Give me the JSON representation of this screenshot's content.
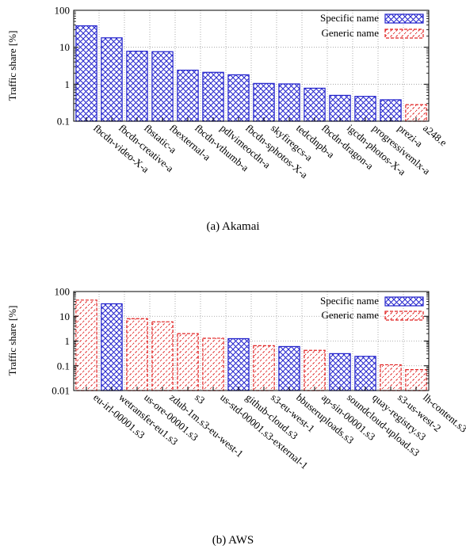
{
  "colors": {
    "specific": "#2222cc",
    "generic": "#e02020",
    "grid": "#999999",
    "axis": "#000000"
  },
  "chart_data": [
    {
      "type": "bar",
      "caption": "(a) Akamai",
      "ylabel": "Traffic share [%]",
      "yscale": "log",
      "ylim": [
        0.1,
        100
      ],
      "yticks": [
        "0.1",
        "1",
        "10",
        "100"
      ],
      "grid": true,
      "legend_position": "top-right",
      "legend": [
        {
          "label": "Specific name",
          "kind": "specific"
        },
        {
          "label": "Generic name",
          "kind": "generic"
        }
      ],
      "categories": [
        "fbcdn-video-X-a",
        "fbcdn-creative-a",
        "fbstatic-a",
        "fbexternal-a",
        "fbcdn-vthumb-a",
        "pdlvimeocdn-a",
        "fbcdn-sphotos-X-a",
        "skyfiregcs-a",
        "tedcdnpb-a",
        "fbcdn-dragon-a",
        "igcdn-photos-X-a",
        "progressivemlx-a",
        "prezi-a",
        "a248.e"
      ],
      "values": [
        38,
        18,
        7.8,
        7.6,
        2.4,
        2.1,
        1.8,
        1.05,
        1.02,
        0.78,
        0.5,
        0.47,
        0.38,
        0.28
      ],
      "kinds": [
        "specific",
        "specific",
        "specific",
        "specific",
        "specific",
        "specific",
        "specific",
        "specific",
        "specific",
        "specific",
        "specific",
        "specific",
        "specific",
        "generic"
      ]
    },
    {
      "type": "bar",
      "caption": "(b) AWS",
      "ylabel": "Traffic share [%]",
      "yscale": "log",
      "ylim": [
        0.01,
        100
      ],
      "yticks": [
        "0.01",
        "0.1",
        "1",
        "10",
        "100"
      ],
      "grid": true,
      "legend_position": "top-right",
      "legend": [
        {
          "label": "Specific name",
          "kind": "specific"
        },
        {
          "label": "Generic name",
          "kind": "generic"
        }
      ],
      "categories": [
        "eu-irl-00001.s3",
        "wetransfer-eu1.s3",
        "us-ore-00001.s3",
        "zdub-1m.s3-eu-west-1",
        "s3",
        "us-std-00001.s3-external-1",
        "github-cloud.s3",
        "s3-eu-west-1",
        "bbuseruploads.s3",
        "ap-sin-00001.s3",
        "soundcloud-upload.s3",
        "quay-registry.s3",
        "s3-us-west-2",
        "lh-content.s3"
      ],
      "values": [
        45,
        32,
        8,
        6,
        2,
        1.3,
        1.25,
        0.65,
        0.6,
        0.42,
        0.31,
        0.24,
        0.11,
        0.07
      ],
      "kinds": [
        "generic",
        "specific",
        "generic",
        "generic",
        "generic",
        "generic",
        "specific",
        "generic",
        "specific",
        "generic",
        "specific",
        "specific",
        "generic",
        "generic"
      ]
    }
  ]
}
